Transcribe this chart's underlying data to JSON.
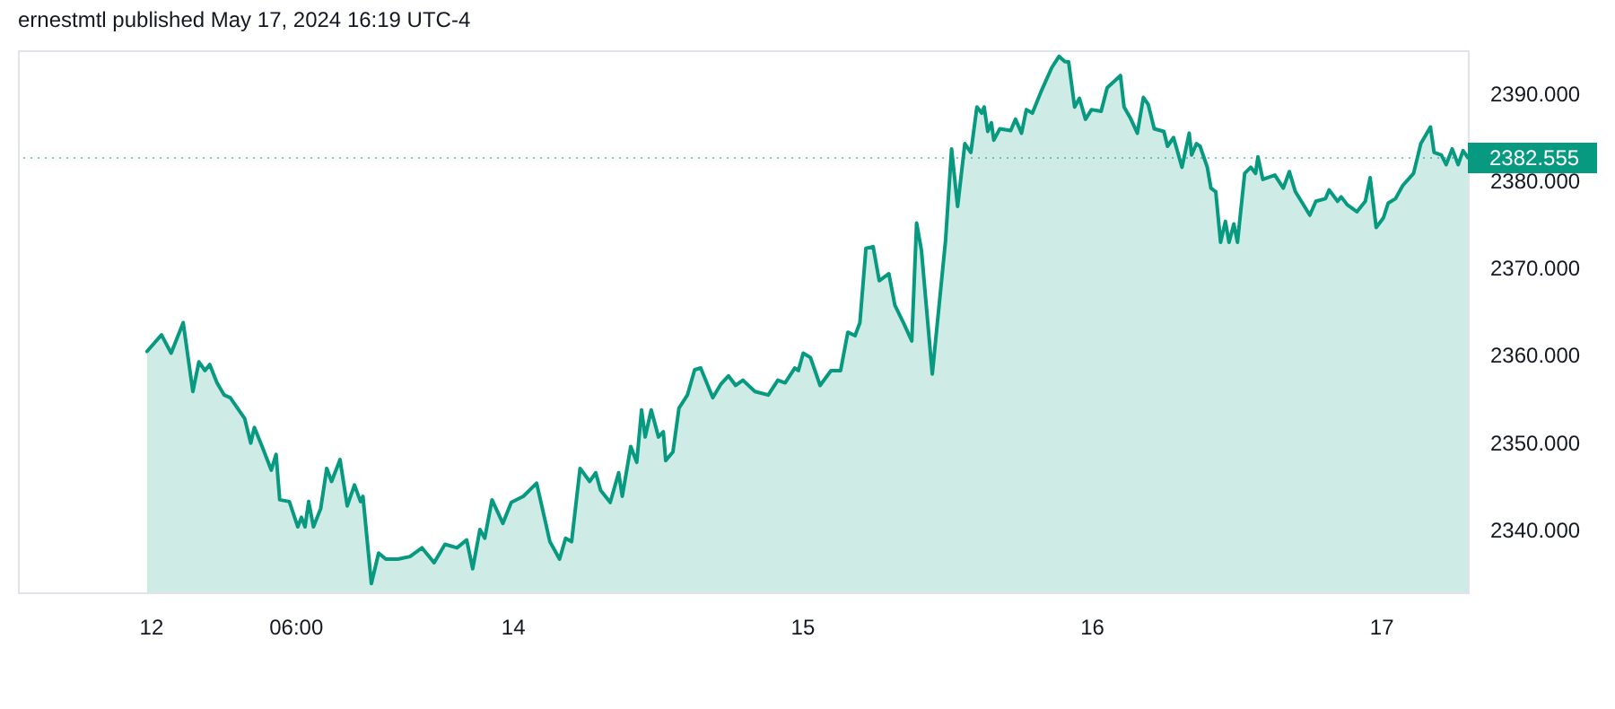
{
  "chart_data": {
    "type": "area",
    "title": "ernestmtl published May 17, 2024 16:19 UTC-4",
    "x": [
      "2024-05-12T17:42",
      "2024-05-12T18:54",
      "2024-05-12T19:42",
      "2024-05-12T20:42",
      "2024-05-12T21:30",
      "2024-05-12T22:00",
      "2024-05-12T22:30",
      "2024-05-12T22:54",
      "2024-05-12T23:30",
      "2024-05-13T00:06",
      "2024-05-13T00:36",
      "2024-05-13T01:48",
      "2024-05-13T02:18",
      "2024-05-13T02:36",
      "2024-05-13T03:18",
      "2024-05-13T04:00",
      "2024-05-13T04:24",
      "2024-05-13T04:42",
      "2024-05-13T05:30",
      "2024-05-13T06:12",
      "2024-05-13T06:30",
      "2024-05-13T06:48",
      "2024-05-13T07:06",
      "2024-05-13T07:30",
      "2024-05-13T08:06",
      "2024-05-13T08:36",
      "2024-05-13T09:00",
      "2024-05-13T09:42",
      "2024-05-13T10:18",
      "2024-05-13T10:54",
      "2024-05-13T11:24",
      "2024-05-13T11:36",
      "2024-05-13T12:18",
      "2024-05-13T12:54",
      "2024-05-13T13:30",
      "2024-05-13T14:30",
      "2024-05-13T15:30",
      "2024-05-13T16:30",
      "2024-05-13T17:30",
      "2024-05-13T18:24",
      "2024-05-13T19:24",
      "2024-05-13T20:12",
      "2024-05-13T20:42",
      "2024-05-13T21:18",
      "2024-05-13T21:42",
      "2024-05-13T22:18",
      "2024-05-13T23:12",
      "2024-05-13T23:54",
      "2024-05-14T00:54",
      "2024-05-14T02:00",
      "2024-05-14T03:06",
      "2024-05-14T03:54",
      "2024-05-14T04:24",
      "2024-05-14T04:54",
      "2024-05-14T05:36",
      "2024-05-14T06:24",
      "2024-05-14T06:54",
      "2024-05-14T07:18",
      "2024-05-14T08:06",
      "2024-05-14T08:48",
      "2024-05-14T09:06",
      "2024-05-14T09:48",
      "2024-05-14T10:18",
      "2024-05-14T10:42",
      "2024-05-14T11:00",
      "2024-05-14T11:30",
      "2024-05-14T12:06",
      "2024-05-14T12:30",
      "2024-05-14T12:42",
      "2024-05-14T13:18",
      "2024-05-14T13:48",
      "2024-05-14T14:30",
      "2024-05-14T15:06",
      "2024-05-14T15:36",
      "2024-05-14T16:36",
      "2024-05-14T17:18",
      "2024-05-14T17:54",
      "2024-05-14T18:30",
      "2024-05-14T19:06",
      "2024-05-14T20:06",
      "2024-05-14T21:12",
      "2024-05-14T22:00",
      "2024-05-14T22:36",
      "2024-05-14T23:24",
      "2024-05-14T23:42",
      "2024-05-15T00:06",
      "2024-05-15T00:42",
      "2024-05-15T01:30",
      "2024-05-15T02:24",
      "2024-05-15T03:12",
      "2024-05-15T03:48",
      "2024-05-15T04:24",
      "2024-05-15T04:48",
      "2024-05-15T05:18",
      "2024-05-15T05:54",
      "2024-05-15T06:24",
      "2024-05-15T07:12",
      "2024-05-15T07:42",
      "2024-05-15T08:24",
      "2024-05-15T09:06",
      "2024-05-15T09:30",
      "2024-05-15T09:54",
      "2024-05-15T10:48",
      "2024-05-15T11:54",
      "2024-05-15T12:24",
      "2024-05-15T12:54",
      "2024-05-15T13:30",
      "2024-05-15T14:00",
      "2024-05-15T14:30",
      "2024-05-15T14:54",
      "2024-05-15T15:06",
      "2024-05-15T15:24",
      "2024-05-15T15:42",
      "2024-05-15T15:54",
      "2024-05-15T16:24",
      "2024-05-15T17:18",
      "2024-05-15T17:42",
      "2024-05-15T18:12",
      "2024-05-15T18:36",
      "2024-05-15T19:06",
      "2024-05-15T19:48",
      "2024-05-15T20:42",
      "2024-05-15T21:18",
      "2024-05-15T21:48",
      "2024-05-15T22:06",
      "2024-05-15T22:36",
      "2024-05-15T23:00",
      "2024-05-15T23:30",
      "2024-05-16T00:00",
      "2024-05-16T00:48",
      "2024-05-16T01:18",
      "2024-05-16T02:24",
      "2024-05-16T02:42",
      "2024-05-16T03:12",
      "2024-05-16T03:48",
      "2024-05-16T04:18",
      "2024-05-16T04:42",
      "2024-05-16T05:12",
      "2024-05-16T06:00",
      "2024-05-16T06:18",
      "2024-05-16T06:48",
      "2024-05-16T07:30",
      "2024-05-16T08:06",
      "2024-05-16T08:18",
      "2024-05-16T08:42",
      "2024-05-16T09:00",
      "2024-05-16T09:36",
      "2024-05-16T09:54",
      "2024-05-16T10:18",
      "2024-05-16T10:42",
      "2024-05-16T11:06",
      "2024-05-16T11:24",
      "2024-05-16T11:48",
      "2024-05-16T12:06",
      "2024-05-16T12:42",
      "2024-05-16T13:12",
      "2024-05-16T13:36",
      "2024-05-16T13:48",
      "2024-05-16T14:12",
      "2024-05-16T15:12",
      "2024-05-16T15:54",
      "2024-05-16T16:24",
      "2024-05-16T16:54",
      "2024-05-16T18:06",
      "2024-05-16T18:36",
      "2024-05-16T19:24",
      "2024-05-16T19:42",
      "2024-05-16T20:24",
      "2024-05-16T20:42",
      "2024-05-16T21:12",
      "2024-05-16T22:00",
      "2024-05-16T22:42",
      "2024-05-16T23:06",
      "2024-05-16T23:36",
      "2024-05-17T00:12",
      "2024-05-17T00:36",
      "2024-05-17T01:12",
      "2024-05-17T01:48",
      "2024-05-17T02:42",
      "2024-05-17T03:18",
      "2024-05-17T04:06",
      "2024-05-17T04:24",
      "2024-05-17T05:00",
      "2024-05-17T05:24",
      "2024-05-17T05:54",
      "2024-05-17T06:24",
      "2024-05-17T06:48",
      "2024-05-17T07:12"
    ],
    "series": [
      {
        "color": "#089981",
        "values": [
          2360.4,
          2362.3,
          2360.2,
          2363.7,
          2355.8,
          2359.2,
          2358.2,
          2358.9,
          2356.8,
          2355.4,
          2355.1,
          2352.7,
          2349.9,
          2351.7,
          2349.3,
          2346.8,
          2348.6,
          2343.4,
          2343.2,
          2340.3,
          2341.4,
          2340.3,
          2343.2,
          2340.3,
          2342.4,
          2347.0,
          2345.5,
          2348.0,
          2342.7,
          2345.1,
          2343.2,
          2343.8,
          2333.8,
          2337.3,
          2336.6,
          2336.6,
          2336.9,
          2337.9,
          2336.2,
          2338.3,
          2337.9,
          2338.8,
          2335.5,
          2340.0,
          2339.0,
          2343.4,
          2340.7,
          2343.1,
          2343.8,
          2345.3,
          2338.6,
          2336.6,
          2339.0,
          2338.6,
          2347.0,
          2345.5,
          2346.5,
          2344.5,
          2343.1,
          2346.5,
          2343.8,
          2349.5,
          2347.7,
          2353.7,
          2350.6,
          2353.7,
          2350.6,
          2351.2,
          2347.9,
          2348.9,
          2353.9,
          2355.4,
          2358.3,
          2358.5,
          2355.1,
          2356.7,
          2357.6,
          2356.5,
          2357.1,
          2355.8,
          2355.4,
          2357.1,
          2356.8,
          2358.5,
          2358.2,
          2360.2,
          2359.7,
          2356.5,
          2358.2,
          2358.2,
          2362.6,
          2362.2,
          2363.7,
          2372.2,
          2372.4,
          2368.5,
          2369.3,
          2365.7,
          2363.7,
          2361.6,
          2375.1,
          2372.0,
          2357.8,
          2373.1,
          2383.6,
          2377.0,
          2384.2,
          2383.2,
          2388.4,
          2387.7,
          2388.4,
          2385.6,
          2386.6,
          2384.6,
          2385.9,
          2385.7,
          2387.0,
          2385.4,
          2388.1,
          2387.7,
          2390.1,
          2392.9,
          2394.2,
          2393.6,
          2393.6,
          2388.4,
          2389.4,
          2387.0,
          2388.1,
          2387.9,
          2390.6,
          2392.0,
          2388.4,
          2387.2,
          2385.4,
          2389.5,
          2388.7,
          2385.9,
          2385.6,
          2383.9,
          2384.9,
          2381.5,
          2385.4,
          2382.9,
          2384.2,
          2383.9,
          2381.5,
          2379.1,
          2378.7,
          2372.9,
          2375.3,
          2372.9,
          2375.0,
          2372.9,
          2380.8,
          2381.5,
          2380.8,
          2382.7,
          2380.1,
          2380.6,
          2379.1,
          2381.0,
          2378.7,
          2376.0,
          2377.6,
          2377.9,
          2378.9,
          2377.6,
          2378.1,
          2377.2,
          2376.4,
          2377.6,
          2380.3,
          2374.6,
          2375.7,
          2377.4,
          2377.9,
          2379.4,
          2380.8,
          2384.2,
          2386.1,
          2383.2,
          2382.9,
          2381.8,
          2383.6,
          2381.8,
          2383.4,
          2382.6
        ]
      }
    ],
    "xlim": [
      "2024-05-12T07:00",
      "2024-05-17T07:12"
    ],
    "xticks": [
      {
        "value": "2024-05-12T18:00",
        "label": "12"
      },
      {
        "value": "2024-05-13T06:00",
        "label": "06:00"
      },
      {
        "value": "2024-05-14",
        "label": "14"
      },
      {
        "value": "2024-05-15",
        "label": "15"
      },
      {
        "value": "2024-05-16",
        "label": "16"
      },
      {
        "value": "2024-05-17",
        "label": "17"
      }
    ],
    "ylim": [
      2332.8,
      2394.9
    ],
    "yticks": [
      {
        "value": 2340,
        "label": "2340.000"
      },
      {
        "value": 2350,
        "label": "2350.000"
      },
      {
        "value": 2360,
        "label": "2360.000"
      },
      {
        "value": 2370,
        "label": "2370.000"
      },
      {
        "value": 2380,
        "label": "2380.000"
      },
      {
        "value": 2390,
        "label": "2390.000"
      }
    ],
    "ref_lines": [
      {
        "axis": "y",
        "value": 2382.555,
        "label": "2382.555",
        "color": "#089981",
        "line_style": "dotted"
      }
    ],
    "grid": false
  }
}
